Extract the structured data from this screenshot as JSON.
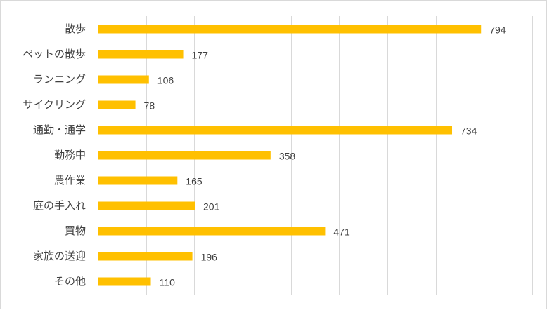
{
  "chart_data": {
    "type": "bar",
    "orientation": "horizontal",
    "title": "",
    "xlabel": "",
    "ylabel": "",
    "categories": [
      "散歩",
      "ペットの散歩",
      "ランニング",
      "サイクリング",
      "通勤・通学",
      "勤務中",
      "農作業",
      "庭の手入れ",
      "買物",
      "家族の送迎",
      "その他"
    ],
    "values": [
      794,
      177,
      106,
      78,
      734,
      358,
      165,
      201,
      471,
      196,
      110
    ],
    "xlim": [
      0,
      900
    ],
    "grid": true,
    "legend": "none",
    "data_labels": true,
    "bar_color": "#ffc000",
    "grid_color": "#d9d9d9",
    "text_color": "#404040"
  }
}
